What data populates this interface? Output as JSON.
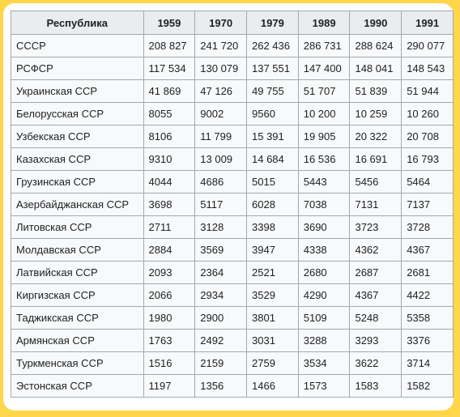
{
  "table": {
    "headers": [
      "Республика",
      "1959",
      "1970",
      "1979",
      "1989",
      "1990",
      "1991"
    ],
    "rows": [
      [
        "СССР",
        "208 827",
        "241 720",
        "262 436",
        "286 731",
        "288 624",
        "290 077"
      ],
      [
        "РСФСР",
        "117 534",
        "130 079",
        "137 551",
        "147 400",
        "148 041",
        "148 543"
      ],
      [
        "Украинская ССР",
        "41 869",
        "47 126",
        "49 755",
        "51 707",
        "51 839",
        "51 944"
      ],
      [
        "Белорусская ССР",
        "8055",
        "9002",
        "9560",
        "10 200",
        "10 259",
        "10 260"
      ],
      [
        "Узбекская ССР",
        "8106",
        "11 799",
        "15 391",
        "19 905",
        "20 322",
        "20 708"
      ],
      [
        "Казахская ССР",
        "9310",
        "13 009",
        "14 684",
        "16 536",
        "16 691",
        "16 793"
      ],
      [
        "Грузинская ССР",
        "4044",
        "4686",
        "5015",
        "5443",
        "5456",
        "5464"
      ],
      [
        "Азербайджанская ССР",
        "3698",
        "5117",
        "6028",
        "7038",
        "7131",
        "7137"
      ],
      [
        "Литовская ССР",
        "2711",
        "3128",
        "3398",
        "3690",
        "3723",
        "3728"
      ],
      [
        "Молдавская ССР",
        "2884",
        "3569",
        "3947",
        "4338",
        "4362",
        "4367"
      ],
      [
        "Латвийская ССР",
        "2093",
        "2364",
        "2521",
        "2680",
        "2687",
        "2681"
      ],
      [
        "Киргизская ССР",
        "2066",
        "2934",
        "3529",
        "4290",
        "4367",
        "4422"
      ],
      [
        "Таджикская ССР",
        "1980",
        "2900",
        "3801",
        "5109",
        "5248",
        "5358"
      ],
      [
        "Армянская ССР",
        "1763",
        "2492",
        "3031",
        "3288",
        "3293",
        "3376"
      ],
      [
        "Туркменская ССР",
        "1516",
        "2159",
        "2759",
        "3534",
        "3622",
        "3714"
      ],
      [
        "Эстонская ССР",
        "1197",
        "1356",
        "1466",
        "1573",
        "1583",
        "1582"
      ]
    ]
  }
}
